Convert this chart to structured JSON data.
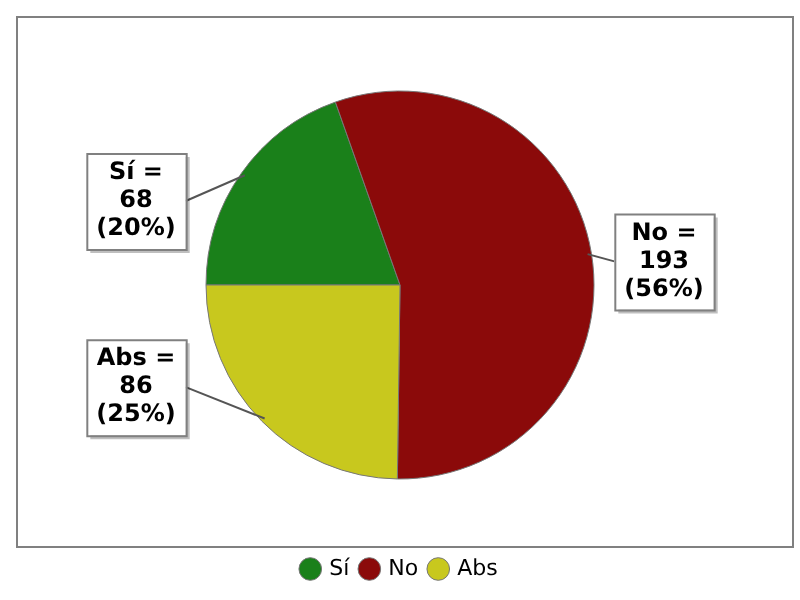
{
  "chart_data": {
    "type": "pie",
    "categories": [
      "Sí",
      "No",
      "Abs"
    ],
    "values": [
      68,
      193,
      86
    ],
    "colors": [
      "#1a801a",
      "#8b0a0a",
      "#c8c81e"
    ],
    "value_labels": [
      "Sí =\n68\n(20%)",
      "No =\n193\n(56%)",
      "Abs =\n86\n(25%)"
    ],
    "legend": "bottom"
  }
}
